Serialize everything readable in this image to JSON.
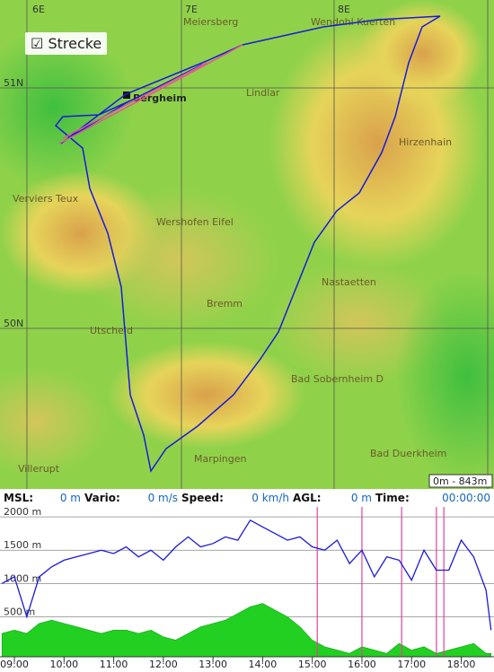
{
  "map": {
    "checkbox_label": "Strecke",
    "grid_labels": {
      "lon": [
        "6E",
        "7E",
        "8E"
      ],
      "lat": [
        "51N",
        "50N"
      ]
    },
    "places": [
      "Meiersberg",
      "Wendohl Kuerten",
      "Bergheim",
      "Lindlar",
      "Hirzenhain",
      "Verviers Teux",
      "Wershofen Eifel",
      "Nastaetten",
      "Bremm",
      "Utscheid",
      "Bad Sobernheim D",
      "Marpingen",
      "Bad Duerkheim",
      "Villerupt"
    ],
    "scale_label": "0m - 843m"
  },
  "status": {
    "items": [
      {
        "label": "MSL:",
        "value": "0 m"
      },
      {
        "label": "Vario:",
        "value": "0 m/s"
      },
      {
        "label": "Speed:",
        "value": "0 km/h"
      },
      {
        "label": "AGL:",
        "value": "0 m"
      },
      {
        "label": "Time:",
        "value": "00:00:00"
      }
    ]
  },
  "barogram": {
    "type": "line",
    "xlim": [
      8.71,
      18.66
    ],
    "ylim": [
      -100,
      2150
    ],
    "xticks": [
      {
        "value": 9,
        "label": "09:00"
      },
      {
        "value": 10,
        "label": "10:00"
      },
      {
        "value": 11,
        "label": "11:00"
      },
      {
        "value": 12,
        "label": "12:00"
      },
      {
        "value": 13,
        "label": "13:00"
      },
      {
        "value": 14,
        "label": "14:00"
      },
      {
        "value": 15,
        "label": "15:00"
      },
      {
        "value": 16,
        "label": "16:00"
      },
      {
        "value": 17,
        "label": "17:00"
      },
      {
        "value": 18,
        "label": "18:00"
      }
    ],
    "yticks": [
      {
        "value": 500,
        "label": "500 m"
      },
      {
        "value": 1000,
        "label": "1000 m"
      },
      {
        "value": 1500,
        "label": "1500 m"
      },
      {
        "value": 2000,
        "label": "2000 m"
      }
    ],
    "x": [
      8.75,
      9,
      9.25,
      9.5,
      9.75,
      10,
      10.25,
      10.5,
      10.75,
      11,
      11.25,
      11.5,
      11.75,
      12,
      12.25,
      12.5,
      12.75,
      13,
      13.25,
      13.5,
      13.75,
      14,
      14.25,
      14.5,
      14.75,
      15,
      15.25,
      15.5,
      15.75,
      16,
      16.25,
      16.5,
      16.75,
      17,
      17.25,
      17.5,
      17.75,
      18,
      18.25,
      18.5,
      18.6
    ],
    "series": [
      {
        "name": "altitude",
        "color": "#1a1adc",
        "values": [
          1000,
          1100,
          500,
          1100,
          1250,
          1350,
          1400,
          1450,
          1500,
          1450,
          1550,
          1400,
          1500,
          1350,
          1550,
          1700,
          1550,
          1600,
          1700,
          1650,
          1950,
          1850,
          1750,
          1650,
          1700,
          1550,
          1500,
          1650,
          1300,
          1500,
          1100,
          1400,
          1350,
          1050,
          1500,
          1200,
          1200,
          1650,
          1400,
          900,
          300
        ]
      },
      {
        "name": "ground",
        "color": "#22d022",
        "values": [
          250,
          300,
          250,
          400,
          450,
          400,
          350,
          300,
          250,
          300,
          300,
          250,
          300,
          200,
          150,
          250,
          350,
          400,
          450,
          550,
          650,
          700,
          600,
          500,
          350,
          150,
          50,
          0,
          -50,
          50,
          0,
          -50,
          100,
          0,
          50,
          -50,
          0,
          50,
          100,
          -50,
          -50
        ]
      }
    ],
    "markers": {
      "color": "#e0449a",
      "x": [
        15.1,
        16.0,
        16.8,
        17.5,
        17.65
      ]
    }
  }
}
